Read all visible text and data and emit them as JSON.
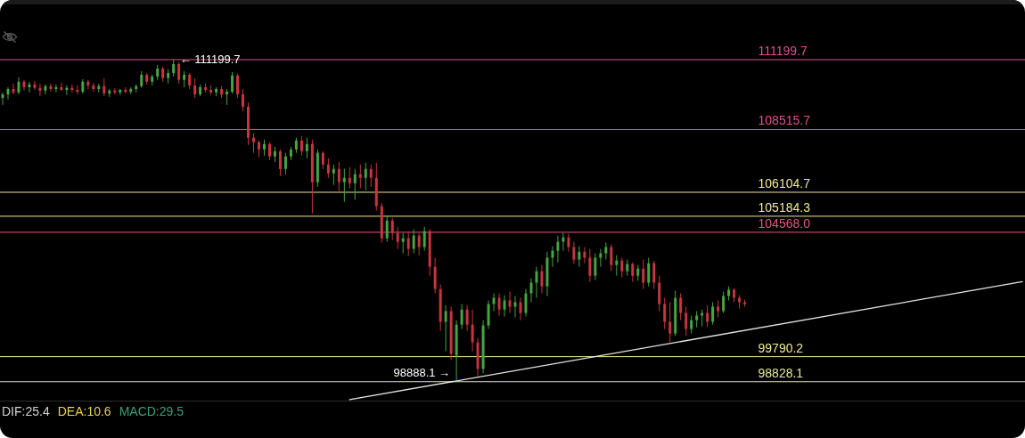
{
  "chart_data": {
    "type": "candlestick",
    "categories": [
      null,
      null,
      null,
      null,
      null,
      null,
      null,
      null,
      null,
      null,
      null,
      null,
      null,
      null,
      null,
      null,
      null,
      null,
      null,
      null,
      null,
      null,
      null,
      null,
      null,
      null,
      null,
      null,
      null,
      null,
      null,
      null,
      null,
      null,
      null,
      null,
      null,
      null,
      null,
      null,
      null,
      null,
      null,
      null,
      null,
      null,
      null,
      null,
      null,
      null,
      null,
      null,
      null,
      null,
      null,
      null,
      null,
      null,
      null,
      null,
      null,
      null,
      null,
      null,
      null,
      null,
      null,
      null,
      null,
      null,
      null,
      null,
      null,
      null,
      null,
      null,
      null,
      null,
      null,
      null,
      null,
      null,
      null,
      null,
      null,
      null,
      null,
      null,
      null,
      null,
      null,
      null,
      null,
      null,
      null,
      null,
      null,
      null,
      null,
      null,
      null,
      null,
      null,
      null,
      null,
      null,
      null,
      null,
      null,
      null,
      null,
      null,
      null,
      null,
      null,
      null,
      null,
      null,
      null,
      null,
      null,
      null,
      null,
      null,
      null,
      null,
      null,
      null,
      null,
      null,
      null,
      null,
      null,
      null,
      null,
      null,
      null,
      null,
      null,
      null,
      null,
      null,
      null,
      null,
      null,
      null,
      null,
      null,
      null,
      null,
      null,
      null,
      null,
      null,
      null,
      null,
      null,
      null,
      null,
      null,
      null,
      null,
      null,
      null,
      null,
      null,
      null,
      null,
      null,
      null,
      null,
      null,
      null,
      null,
      null,
      null,
      null,
      null,
      null,
      null,
      null,
      null,
      null,
      null,
      null,
      null,
      null,
      null,
      null,
      null,
      null,
      null
    ],
    "ohlc": [
      [
        109730,
        109940,
        109460,
        109870
      ],
      [
        109870,
        110140,
        109670,
        110070
      ],
      [
        110070,
        110280,
        109870,
        109940
      ],
      [
        109940,
        110520,
        109870,
        110350
      ],
      [
        110350,
        110420,
        110010,
        110140
      ],
      [
        110140,
        110350,
        109940,
        110250
      ],
      [
        110250,
        110380,
        110040,
        110110
      ],
      [
        110110,
        110280,
        109800,
        110010
      ],
      [
        110010,
        110250,
        109870,
        110180
      ],
      [
        110180,
        110280,
        109970,
        110070
      ],
      [
        110070,
        110250,
        109940,
        110140
      ],
      [
        110140,
        110310,
        110010,
        110040
      ],
      [
        110040,
        110210,
        109840,
        110110
      ],
      [
        110110,
        110250,
        109940,
        110040
      ],
      [
        110040,
        110210,
        109870,
        109970
      ],
      [
        109970,
        110450,
        109900,
        110350
      ],
      [
        110350,
        110420,
        110070,
        110210
      ],
      [
        110210,
        110310,
        109970,
        110070
      ],
      [
        110070,
        110280,
        109940,
        110180
      ],
      [
        110180,
        110490,
        109800,
        109900
      ],
      [
        109900,
        110070,
        109770,
        110010
      ],
      [
        110010,
        110110,
        109870,
        109940
      ],
      [
        109940,
        110070,
        109840,
        110040
      ],
      [
        110040,
        110140,
        109900,
        109970
      ],
      [
        109970,
        110140,
        109870,
        110070
      ],
      [
        110070,
        110250,
        109940,
        110180
      ],
      [
        110180,
        110760,
        110110,
        110620
      ],
      [
        110620,
        110690,
        110250,
        110350
      ],
      [
        110350,
        110620,
        110210,
        110550
      ],
      [
        110550,
        111000,
        110420,
        110860
      ],
      [
        110860,
        110930,
        110350,
        110490
      ],
      [
        110490,
        110830,
        110280,
        110690
      ],
      [
        110690,
        111199.7,
        110550,
        111030
      ],
      [
        111030,
        111100,
        110280,
        110420
      ],
      [
        110420,
        110760,
        110140,
        110620
      ],
      [
        110620,
        110690,
        110070,
        110210
      ],
      [
        110210,
        110490,
        109730,
        109870
      ],
      [
        109870,
        110250,
        109800,
        110140
      ],
      [
        110140,
        110280,
        109940,
        110040
      ],
      [
        110040,
        110210,
        109840,
        109940
      ],
      [
        109940,
        110140,
        109800,
        110070
      ],
      [
        110070,
        110180,
        109730,
        109870
      ],
      [
        109870,
        110070,
        109460,
        109970
      ],
      [
        109970,
        110720,
        109900,
        110590
      ],
      [
        110590,
        110660,
        109730,
        109870
      ],
      [
        109870,
        110070,
        109220,
        109390
      ],
      [
        109390,
        109560,
        107920,
        108200
      ],
      [
        108200,
        108370,
        107620,
        108030
      ],
      [
        108030,
        108090,
        107450,
        107750
      ],
      [
        107750,
        108130,
        107510,
        107960
      ],
      [
        107960,
        108030,
        107340,
        107480
      ],
      [
        107480,
        107850,
        107270,
        107680
      ],
      [
        107680,
        107750,
        106730,
        107000
      ],
      [
        107000,
        107620,
        106800,
        107480
      ],
      [
        107480,
        107850,
        107340,
        107750
      ],
      [
        107750,
        108200,
        107620,
        108090
      ],
      [
        108090,
        108270,
        107510,
        107680
      ],
      [
        107680,
        108200,
        107410,
        107960
      ],
      [
        107960,
        108130,
        105290,
        106490
      ],
      [
        106490,
        107750,
        106320,
        107620
      ],
      [
        107620,
        107680,
        107000,
        107170
      ],
      [
        107170,
        107410,
        106660,
        106830
      ],
      [
        106830,
        107170,
        106390,
        107000
      ],
      [
        107000,
        107270,
        106150,
        106490
      ],
      [
        106490,
        107000,
        105740,
        106660
      ],
      [
        106660,
        107070,
        106250,
        106450
      ],
      [
        106450,
        107000,
        105810,
        106800
      ],
      [
        106800,
        107170,
        106250,
        106660
      ],
      [
        106660,
        107240,
        106180,
        107000
      ],
      [
        107000,
        107170,
        106320,
        106660
      ],
      [
        106660,
        107240,
        105400,
        105570
      ],
      [
        105570,
        105700,
        104170,
        104340
      ],
      [
        104340,
        105190,
        104200,
        105020
      ],
      [
        105020,
        105120,
        104270,
        104540
      ],
      [
        104540,
        104780,
        103930,
        104200
      ],
      [
        104200,
        104540,
        103760,
        104340
      ],
      [
        104340,
        104610,
        103650,
        103930
      ],
      [
        103930,
        104680,
        103760,
        104440
      ],
      [
        104440,
        104540,
        103690,
        104000
      ],
      [
        104000,
        104780,
        103860,
        104610
      ],
      [
        104610,
        104680,
        102900,
        103240
      ],
      [
        103240,
        103590,
        102220,
        102390
      ],
      [
        102390,
        102560,
        100780,
        101130
      ],
      [
        101130,
        101770,
        100000,
        101540
      ],
      [
        101540,
        101710,
        99660,
        99900
      ],
      [
        99830,
        101190,
        98888.1,
        101020
      ],
      [
        101020,
        101810,
        100850,
        101600
      ],
      [
        101600,
        101770,
        100780,
        101020
      ],
      [
        101020,
        101600,
        100000,
        100340
      ],
      [
        100340,
        100510,
        99040,
        99320
      ],
      [
        99320,
        101190,
        99150,
        100990
      ],
      [
        100990,
        101950,
        100850,
        101810
      ],
      [
        101810,
        102220,
        101540,
        102050
      ],
      [
        102050,
        102220,
        101370,
        101600
      ],
      [
        101600,
        102150,
        101330,
        101950
      ],
      [
        101950,
        102290,
        101470,
        101710
      ],
      [
        101710,
        102120,
        101300,
        101880
      ],
      [
        101880,
        102050,
        101190,
        101470
      ],
      [
        101470,
        102390,
        101330,
        102220
      ],
      [
        102220,
        102800,
        101880,
        102630
      ],
      [
        102630,
        103240,
        102050,
        103070
      ],
      [
        103070,
        103310,
        102220,
        102490
      ],
      [
        102490,
        103820,
        102120,
        103590
      ],
      [
        103590,
        104030,
        103240,
        103860
      ],
      [
        103860,
        104440,
        103410,
        104200
      ],
      [
        104200,
        104540,
        103860,
        104370
      ],
      [
        104370,
        104510,
        103820,
        104000
      ],
      [
        104000,
        104200,
        103350,
        103520
      ],
      [
        103520,
        104030,
        103240,
        103820
      ],
      [
        103820,
        104000,
        103380,
        103590
      ],
      [
        103590,
        103930,
        102660,
        102900
      ],
      [
        102900,
        103760,
        102730,
        103590
      ],
      [
        103590,
        103930,
        103240,
        103760
      ],
      [
        103760,
        104170,
        103520,
        104000
      ],
      [
        104000,
        104100,
        103070,
        103310
      ],
      [
        103310,
        103690,
        102900,
        103480
      ],
      [
        103480,
        103590,
        102830,
        103070
      ],
      [
        103070,
        103520,
        102900,
        103350
      ],
      [
        103350,
        103410,
        102660,
        102900
      ],
      [
        102900,
        103310,
        102700,
        103170
      ],
      [
        103170,
        103520,
        102390,
        102630
      ],
      [
        102630,
        103590,
        102490,
        103380
      ],
      [
        103380,
        103480,
        102390,
        102630
      ],
      [
        102630,
        102900,
        101540,
        101810
      ],
      [
        101810,
        102050,
        100850,
        101130
      ],
      [
        101130,
        101880,
        100340,
        100680
      ],
      [
        100680,
        102320,
        100580,
        102050
      ],
      [
        102050,
        102220,
        101190,
        101470
      ],
      [
        101470,
        101710,
        100580,
        100850
      ],
      [
        100850,
        101370,
        100680,
        101190
      ],
      [
        101190,
        101540,
        100920,
        101370
      ],
      [
        101370,
        101600,
        100960,
        101470
      ],
      [
        101470,
        101770,
        100920,
        101130
      ],
      [
        101130,
        101880,
        101020,
        101710
      ],
      [
        101710,
        101950,
        101300,
        101540
      ],
      [
        101540,
        102290,
        101470,
        102120
      ],
      [
        102120,
        102490,
        101950,
        102360
      ],
      [
        102360,
        102420,
        101880,
        102050
      ],
      [
        102050,
        102150,
        101640,
        101880
      ],
      [
        101880,
        101980,
        101710,
        101810
      ],
      null,
      null,
      null,
      null,
      null,
      null,
      null,
      null,
      null,
      null,
      null,
      null,
      null,
      null,
      null,
      null,
      null,
      null,
      null,
      null,
      null,
      null,
      null,
      null,
      null,
      null,
      null,
      null,
      null,
      null,
      null,
      null,
      null,
      null,
      null,
      null,
      null,
      null,
      null,
      null,
      null,
      null,
      null,
      null,
      null,
      null,
      null,
      null,
      null,
      null,
      null,
      null
    ],
    "series": [
      {
        "type": "line",
        "color": "#e6e6e6",
        "values": [
          null,
          null,
          null,
          null,
          null,
          null,
          null,
          null,
          null,
          null,
          null,
          null,
          null,
          null,
          null,
          null,
          null,
          null,
          null,
          null,
          null,
          null,
          null,
          null,
          null,
          null,
          null,
          null,
          null,
          null,
          null,
          null,
          null,
          null,
          null,
          null,
          null,
          null,
          null,
          null,
          null,
          null,
          null,
          null,
          null,
          null,
          null,
          null,
          null,
          null,
          null,
          null,
          null,
          null,
          null,
          null,
          null,
          null,
          null,
          null,
          null,
          null,
          null,
          null,
          null,
          98140,
          null,
          null,
          null,
          null,
          null,
          null,
          null,
          null,
          null,
          null,
          null,
          null,
          null,
          null,
          null,
          null,
          null,
          null,
          null,
          null,
          null,
          null,
          null,
          null,
          null,
          null,
          null,
          null,
          null,
          null,
          null,
          null,
          null,
          null,
          null,
          null,
          null,
          null,
          null,
          null,
          null,
          null,
          null,
          null,
          null,
          null,
          null,
          null,
          null,
          null,
          null,
          null,
          null,
          null,
          null,
          null,
          null,
          null,
          null,
          null,
          null,
          null,
          null,
          null,
          null,
          null,
          null,
          null,
          null,
          null,
          null,
          null,
          null,
          null,
          null,
          null,
          null,
          null,
          null,
          null,
          null,
          null,
          null,
          null,
          null,
          null,
          null,
          null,
          null,
          null,
          null,
          null,
          null,
          null,
          null,
          null,
          null,
          null,
          null,
          null,
          null,
          null,
          null,
          null,
          null,
          null,
          null,
          null,
          null,
          null,
          null,
          null,
          null,
          null,
          null,
          null,
          null,
          null,
          null,
          null,
          null,
          null,
          null,
          null,
          null,
          102670
        ]
      }
    ],
    "ref_lines": [
      {
        "axis": "y",
        "value": 111199.7,
        "label": "111199.7",
        "color": "#e0508e"
      },
      {
        "axis": "y",
        "value": 108515.7,
        "label": "108515.7",
        "color": "#e0508e"
      },
      {
        "axis": "y",
        "value": 106104.7,
        "label": "106104.7",
        "color": "#f0ea8e"
      },
      {
        "axis": "y",
        "value": 105184.3,
        "label": "105184.3",
        "color": "#f0ea8e"
      },
      {
        "axis": "y",
        "value": 104568.0,
        "label": "104568.0",
        "color": "#e2587f"
      },
      {
        "axis": "y",
        "value": 99790.2,
        "label": "99790.2",
        "color": "#f0ea8e"
      },
      {
        "axis": "y",
        "value": 98828.1,
        "label": "98828.1",
        "color": "#e4e89a"
      }
    ],
    "annotations": [
      {
        "text": "← 111199.7",
        "y": 111199.7
      },
      {
        "text": "98888.1 →",
        "y": 98888.1
      },
      "DIF:25.4",
      "DEA:10.6",
      "MACD:29.5"
    ],
    "tick_labels": false
  }
}
